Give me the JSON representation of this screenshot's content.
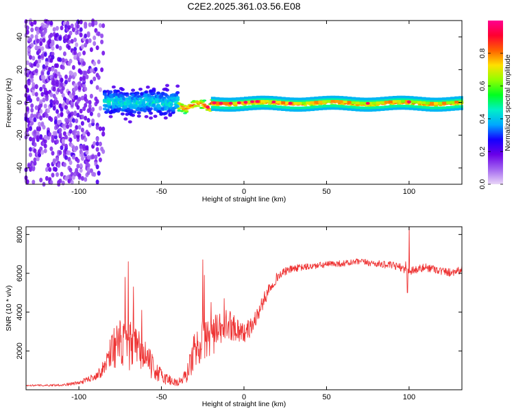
{
  "title": "C2E2.2025.361.03.56.E08",
  "chart_data": [
    {
      "type": "heatmap",
      "name": "spectrogram",
      "xlabel": "Height of straight line (km)",
      "ylabel": "Frequency (Hz)",
      "xlim": [
        -132,
        132
      ],
      "ylim": [
        -50,
        50
      ],
      "xticks": [
        -100,
        -50,
        0,
        50,
        100
      ],
      "yticks": [
        -40,
        -20,
        0,
        20,
        40
      ],
      "xtick_labels": [
        "-100",
        "-50",
        "0",
        "50",
        "100"
      ],
      "ytick_labels": [
        "-40",
        "-20",
        "0",
        "20",
        "40"
      ],
      "colorbar": {
        "label": "Normalized spectral amplitude",
        "range": [
          0,
          1
        ],
        "ticks": [
          0.0,
          0.2,
          0.4,
          0.6,
          0.8
        ],
        "tick_labels": [
          "0.0",
          "0.2",
          "0.4",
          "0.6",
          "0.8"
        ],
        "colors": [
          "#e9d6f7",
          "#a366f0",
          "#6a00e8",
          "#1400ff",
          "#00a8ff",
          "#00f0c8",
          "#00ff20",
          "#90ff00",
          "#ffe000",
          "#ff6000",
          "#ff0030",
          "#ff0090"
        ]
      },
      "regions": [
        {
          "x": [
            -132,
            -85
          ],
          "freq_spread_hz": 50,
          "amplitude": [
            0.05,
            0.22
          ]
        },
        {
          "x": [
            -85,
            -40
          ],
          "freq_spread_hz": 9,
          "amplitude": [
            0.2,
            0.5
          ]
        },
        {
          "x": [
            -40,
            -20
          ],
          "freq_spread_hz": 3,
          "amplitude": [
            0.5,
            0.9
          ]
        },
        {
          "x": [
            -20,
            132
          ],
          "freq_spread_hz": 2,
          "amplitude": [
            0.6,
            1.0
          ]
        }
      ]
    },
    {
      "type": "line",
      "name": "snr",
      "xlabel": "Height of straight line (km)",
      "ylabel": "SNR (10 * v/v)",
      "xlim": [
        -132,
        132
      ],
      "ylim": [
        0,
        8400
      ],
      "xticks": [
        -100,
        -50,
        0,
        50,
        100
      ],
      "yticks": [
        2000,
        4000,
        6000,
        8000
      ],
      "xtick_labels": [
        "-100",
        "-50",
        "0",
        "50",
        "100"
      ],
      "ytick_labels": [
        "2000",
        "4000",
        "6000",
        "8000"
      ],
      "color": "#ee3333",
      "x": [
        -132,
        -120,
        -110,
        -100,
        -90,
        -85,
        -80,
        -75,
        -70,
        -65,
        -60,
        -55,
        -50,
        -45,
        -40,
        -35,
        -30,
        -25,
        -20,
        -15,
        -10,
        -5,
        0,
        5,
        10,
        15,
        20,
        25,
        30,
        35,
        40,
        45,
        50,
        55,
        60,
        65,
        70,
        75,
        80,
        85,
        90,
        95,
        100,
        105,
        110,
        115,
        120,
        125,
        132
      ],
      "y": [
        220,
        230,
        250,
        350,
        700,
        1100,
        2200,
        2300,
        2300,
        2100,
        1800,
        1100,
        700,
        500,
        350,
        700,
        2000,
        2600,
        2800,
        3000,
        3400,
        3200,
        2900,
        3300,
        4200,
        5200,
        5800,
        6100,
        6250,
        6300,
        6350,
        6400,
        6450,
        6500,
        6500,
        6550,
        6600,
        6550,
        6500,
        6450,
        6400,
        6300,
        6150,
        6200,
        6300,
        6250,
        6100,
        6050,
        6200
      ],
      "noise": [
        40,
        50,
        60,
        100,
        200,
        400,
        1000,
        1300,
        1300,
        1100,
        900,
        600,
        400,
        300,
        200,
        400,
        1000,
        1100,
        1100,
        900,
        800,
        700,
        500,
        500,
        400,
        350,
        250,
        200,
        200,
        180,
        180,
        170,
        170,
        170,
        170,
        170,
        170,
        170,
        180,
        180,
        200,
        200,
        250,
        220,
        220,
        220,
        220,
        220,
        220
      ],
      "spikes": [
        {
          "x": -70,
          "y": 6600
        },
        {
          "x": -72,
          "y": 5800
        },
        {
          "x": -67,
          "y": 5300
        },
        {
          "x": -62,
          "y": 4100
        },
        {
          "x": -25,
          "y": 6700
        },
        {
          "x": -24,
          "y": 5900
        },
        {
          "x": -20,
          "y": 4500
        },
        {
          "x": -12,
          "y": 4700
        },
        {
          "x": 100,
          "y": 8400
        },
        {
          "x": 98,
          "y": 6600
        },
        {
          "x": 99,
          "y": 5000
        }
      ]
    }
  ]
}
